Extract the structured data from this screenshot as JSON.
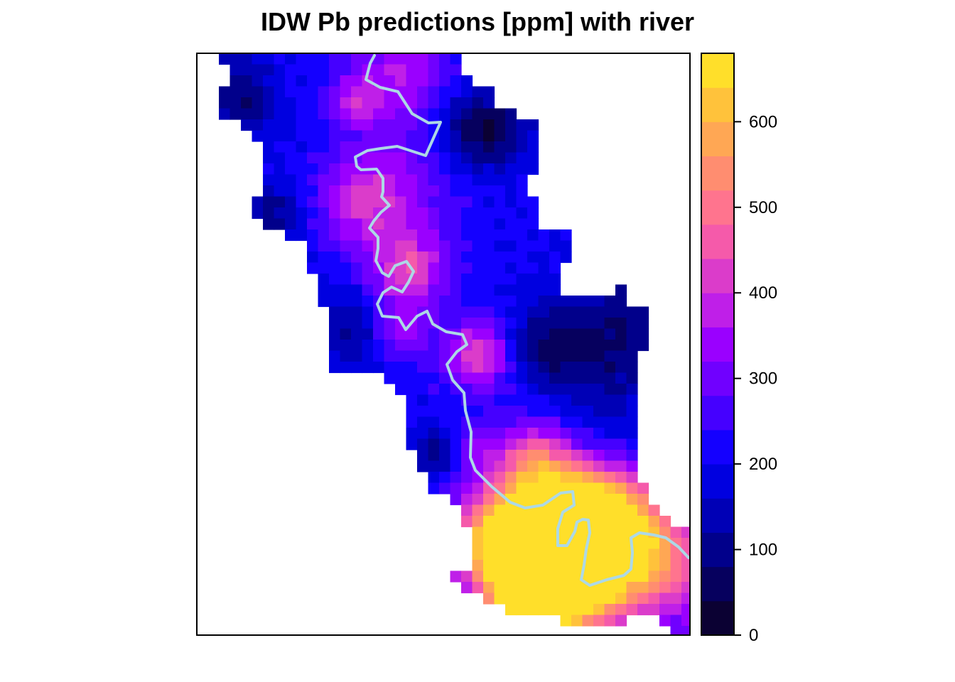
{
  "title": "IDW Pb predictions [ppm] with river",
  "legend": {
    "min": 0,
    "max": 680,
    "breaks": [
      0,
      40,
      80,
      120,
      160,
      200,
      240,
      280,
      320,
      360,
      400,
      440,
      480,
      520,
      560,
      600,
      640,
      680
    ],
    "colors": [
      "#0B0133",
      "#06005E",
      "#01008B",
      "#0000B6",
      "#0000E0",
      "#1400FF",
      "#4500FF",
      "#7000FF",
      "#9A00FF",
      "#BF1FE8",
      "#DB3CCA",
      "#F55AAA",
      "#FF748E",
      "#FF8D70",
      "#FFA754",
      "#FFC23B",
      "#FFDF2A",
      "#FFFE55"
    ],
    "ticks": [
      {
        "value": 0,
        "label": "0"
      },
      {
        "value": 100,
        "label": "100"
      },
      {
        "value": 200,
        "label": "200"
      },
      {
        "value": 300,
        "label": "300"
      },
      {
        "value": 400,
        "label": "400"
      },
      {
        "value": 500,
        "label": "500"
      },
      {
        "value": 600,
        "label": "600"
      }
    ]
  },
  "grid": {
    "rows": [
      "..........0...................",
      ".........................................................",
      "..............................",
      "..................................",
      "..................................."
    ]
  },
  "river_color": "#ADD8E6"
}
